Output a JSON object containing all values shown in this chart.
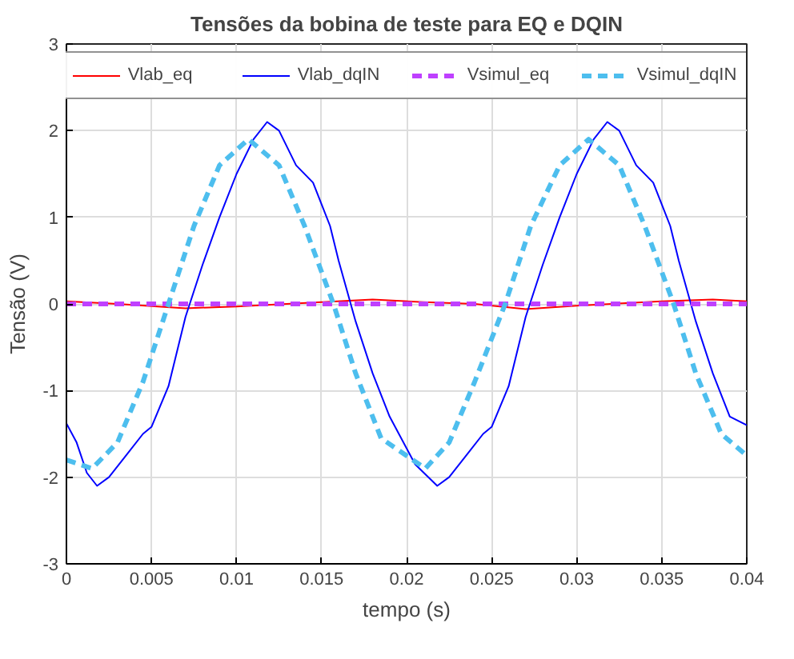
{
  "chart_data": {
    "type": "line",
    "title": "Tensões da bobina de teste para EQ e DQIN",
    "xlabel": "tempo (s)",
    "ylabel": "Tensão (V)",
    "xlim": [
      0,
      0.04
    ],
    "ylim": [
      -3,
      3
    ],
    "xticks": [
      0,
      0.005,
      0.01,
      0.015,
      0.02,
      0.025,
      0.03,
      0.035,
      0.04
    ],
    "yticks": [
      -3,
      -2,
      -1,
      0,
      1,
      2,
      3
    ],
    "grid": true,
    "legend": "top",
    "line_style": "solid",
    "series": [
      {
        "name": "Vlab_eq",
        "color": "#ff0000",
        "x": [
          0,
          0.003,
          0.007,
          0.01,
          0.015,
          0.018,
          0.021,
          0.024,
          0.027,
          0.03,
          0.035,
          0.038,
          0.04
        ],
        "values": [
          0.03,
          0,
          -0.05,
          -0.03,
          0.02,
          0.05,
          0.02,
          0,
          -0.06,
          -0.02,
          0.03,
          0.05,
          0.03
        ]
      },
      {
        "name": "Vlab_dqIN",
        "color": "#0000ff",
        "x": [
          0,
          0.0006,
          0.0012,
          0.0018,
          0.0025,
          0.0035,
          0.0045,
          0.005,
          0.006,
          0.007,
          0.008,
          0.009,
          0.01,
          0.011,
          0.0118,
          0.0125,
          0.0135,
          0.0145,
          0.0155,
          0.016,
          0.017,
          0.018,
          0.019,
          0.0205,
          0.0218,
          0.0225,
          0.0235,
          0.0245,
          0.025,
          0.026,
          0.027,
          0.028,
          0.029,
          0.03,
          0.031,
          0.0318,
          0.0325,
          0.0335,
          0.0345,
          0.0355,
          0.036,
          0.037,
          0.038,
          0.039,
          0.04
        ],
        "values": [
          -1.38,
          -1.6,
          -1.95,
          -2.1,
          -2.0,
          -1.75,
          -1.5,
          -1.42,
          -0.95,
          -0.15,
          0.45,
          1.0,
          1.5,
          1.9,
          2.1,
          2.0,
          1.6,
          1.4,
          0.9,
          0.5,
          -0.2,
          -0.8,
          -1.3,
          -1.85,
          -2.1,
          -2.0,
          -1.75,
          -1.5,
          -1.42,
          -0.95,
          -0.15,
          0.45,
          1.0,
          1.5,
          1.9,
          2.1,
          2.0,
          1.6,
          1.4,
          0.9,
          0.5,
          -0.2,
          -0.8,
          -1.3,
          -1.4
        ]
      },
      {
        "name": "Vsimul_eq",
        "color": "#bf40ff",
        "line_style": "dashed",
        "x": [
          0,
          0.01,
          0.02,
          0.03,
          0.04
        ],
        "values": [
          0,
          0,
          0,
          0,
          0
        ]
      },
      {
        "name": "Vsimul_dqIN",
        "color": "#4dbeee",
        "line_style": "dashed",
        "x": [
          0,
          0.0015,
          0.003,
          0.0045,
          0.006,
          0.0075,
          0.009,
          0.0107,
          0.0125,
          0.014,
          0.0157,
          0.017,
          0.0185,
          0.0211,
          0.0225,
          0.024,
          0.0258,
          0.0273,
          0.029,
          0.0307,
          0.0325,
          0.034,
          0.0357,
          0.037,
          0.0385,
          0.04
        ],
        "values": [
          -1.8,
          -1.9,
          -1.6,
          -0.9,
          0,
          0.9,
          1.6,
          1.9,
          1.6,
          0.9,
          0,
          -0.8,
          -1.55,
          -1.9,
          -1.6,
          -0.9,
          0,
          0.9,
          1.6,
          1.9,
          1.6,
          0.9,
          0,
          -0.8,
          -1.5,
          -1.75
        ]
      }
    ]
  }
}
